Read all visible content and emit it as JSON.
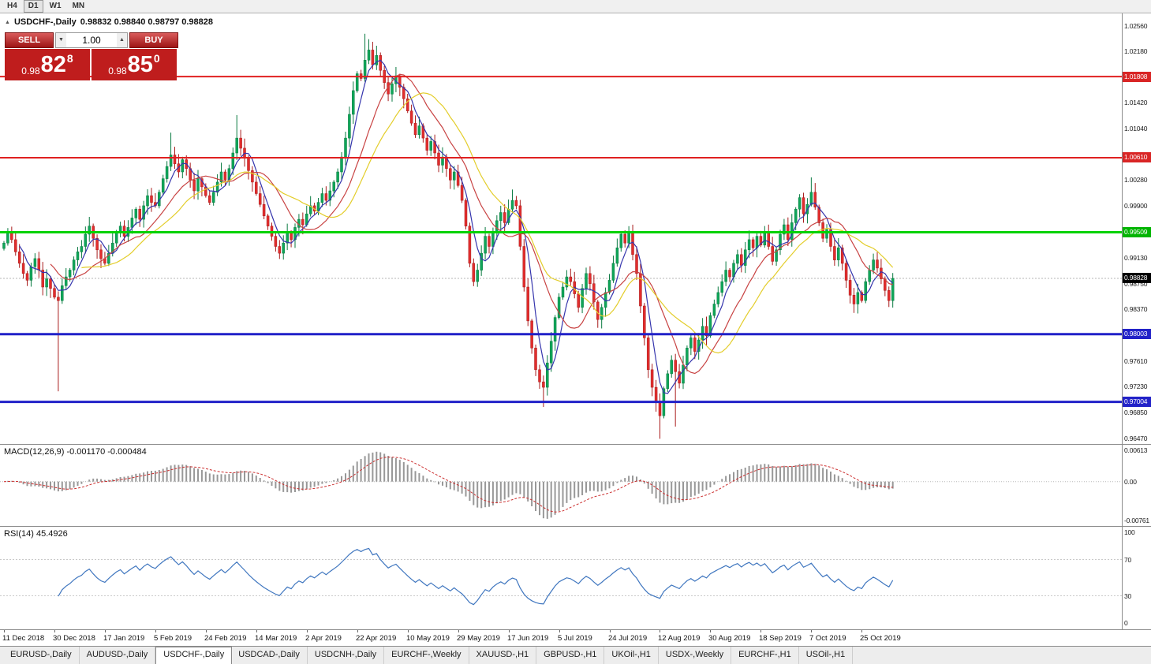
{
  "timeframe_toolbar": {
    "items": [
      "H4",
      "D1",
      "W1",
      "MN"
    ],
    "active": "D1"
  },
  "chart_header": {
    "symbol": "USDCHF-,Daily",
    "ohlc": "0.98832 0.98840 0.98797 0.98828"
  },
  "trade_panel": {
    "sell_label": "SELL",
    "buy_label": "BUY",
    "volume": "1.00",
    "sell_price": {
      "base": "0.98",
      "big": "82",
      "sup": "8"
    },
    "buy_price": {
      "base": "0.98",
      "big": "85",
      "sup": "0"
    }
  },
  "price_axis": {
    "max": 1.0256,
    "min": 0.9647,
    "ticks": [
      "1.02560",
      "1.02180",
      "1.01420",
      "1.01040",
      "1.00280",
      "0.99900",
      "0.99130",
      "0.98750",
      "0.98370",
      "0.97610",
      "0.97230",
      "0.96850",
      "0.96470"
    ],
    "badges": [
      {
        "value": "1.01808",
        "price": 1.01808,
        "color": "#d92525",
        "type": "resistance-line"
      },
      {
        "value": "1.00610",
        "price": 1.0061,
        "color": "#d92525",
        "type": "resistance-line"
      },
      {
        "value": "0.99509",
        "price": 0.99509,
        "color": "#00b400",
        "type": "level-line"
      },
      {
        "value": "0.98828",
        "price": 0.98828,
        "color": "#000000",
        "type": "current-price"
      },
      {
        "value": "0.98003",
        "price": 0.98003,
        "color": "#2222c8",
        "type": "support-line"
      },
      {
        "value": "0.97004",
        "price": 0.97004,
        "color": "#2222c8",
        "type": "support-line"
      }
    ]
  },
  "macd_panel": {
    "label": "MACD(12,26,9) -0.001170 -0.000484",
    "fast": 12,
    "slow": 26,
    "signal": 9,
    "max": 0.00613,
    "min": -0.00761,
    "axis_labels": [
      {
        "text": "0.00613",
        "value": 0.00613
      },
      {
        "text": "0.00",
        "value": 0
      },
      {
        "text": "-0.00761",
        "value": -0.00761
      }
    ]
  },
  "rsi_panel": {
    "label": "RSI(14) 45.4926",
    "period": 14,
    "levels": [
      70,
      30
    ],
    "axis_labels": [
      {
        "text": "100",
        "value": 100
      },
      {
        "text": "70",
        "value": 70
      },
      {
        "text": "30",
        "value": 30
      },
      {
        "text": "0",
        "value": 0
      }
    ]
  },
  "bottom_tabs": {
    "active": "USDCHF-,Daily",
    "tabs": [
      "EURUSD-,Daily",
      "AUDUSD-,Daily",
      "USDCHF-,Daily",
      "USDCAD-,Daily",
      "USDCNH-,Daily",
      "EURCHF-,Weekly",
      "XAUUSD-,H1",
      "GBPUSD-,H1",
      "UKOil-,H1",
      "USDX-,Weekly",
      "EURCHF-,H1",
      "USOil-,H1"
    ]
  },
  "chart_data": {
    "type": "candlestick",
    "title": "USDCHF-,Daily",
    "current_price": 0.98828,
    "hlines": [
      {
        "price": 1.01808,
        "color": "#e02020",
        "width": 2
      },
      {
        "price": 1.0061,
        "color": "#e02020",
        "width": 2
      },
      {
        "price": 0.99509,
        "color": "#00d200",
        "width": 3
      },
      {
        "price": 0.98003,
        "color": "#2121c8",
        "width": 3
      },
      {
        "price": 0.97004,
        "color": "#2121c8",
        "width": 3
      }
    ],
    "moving_averages": [
      {
        "period": 5,
        "color": "#3535ad"
      },
      {
        "period": 13,
        "color": "#c84343"
      },
      {
        "period": 21,
        "color": "#e3cd2a"
      }
    ],
    "date_labels": [
      {
        "i": 0,
        "t": "11 Dec 2018"
      },
      {
        "i": 13,
        "t": "30 Dec 2018"
      },
      {
        "i": 26,
        "t": "17 Jan 2019"
      },
      {
        "i": 39,
        "t": "5 Feb 2019"
      },
      {
        "i": 52,
        "t": "24 Feb 2019"
      },
      {
        "i": 65,
        "t": "14 Mar 2019"
      },
      {
        "i": 78,
        "t": "2 Apr 2019"
      },
      {
        "i": 91,
        "t": "22 Apr 2019"
      },
      {
        "i": 104,
        "t": "10 May 2019"
      },
      {
        "i": 117,
        "t": "29 May 2019"
      },
      {
        "i": 130,
        "t": "17 Jun 2019"
      },
      {
        "i": 143,
        "t": "5 Jul 2019"
      },
      {
        "i": 156,
        "t": "24 Jul 2019"
      },
      {
        "i": 169,
        "t": "12 Aug 2019"
      },
      {
        "i": 182,
        "t": "30 Aug 2019"
      },
      {
        "i": 195,
        "t": "18 Sep 2019"
      },
      {
        "i": 208,
        "t": "7 Oct 2019"
      },
      {
        "i": 221,
        "t": "25 Oct 2019"
      }
    ],
    "closes": [
      0.9935,
      0.9952,
      0.994,
      0.9922,
      0.9905,
      0.989,
      0.988,
      0.99,
      0.9912,
      0.9895,
      0.987,
      0.9882,
      0.9868,
      0.9855,
      0.985,
      0.9872,
      0.9885,
      0.9895,
      0.991,
      0.9922,
      0.993,
      0.9948,
      0.996,
      0.9942,
      0.9925,
      0.9912,
      0.9905,
      0.992,
      0.9935,
      0.995,
      0.996,
      0.9945,
      0.9958,
      0.9972,
      0.9985,
      0.997,
      0.999,
      1.0005,
      0.9995,
      0.999,
      1.001,
      1.003,
      1.0048,
      1.0065,
      1.0052,
      1.004,
      1.0058,
      1.0045,
      1.0028,
      1.0012,
      1.003,
      1.0018,
      1.0005,
      0.9995,
      1.001,
      1.0025,
      1.004,
      1.0028,
      1.0045,
      1.0068,
      1.009,
      1.0075,
      1.006,
      1.0042,
      1.0025,
      1.0008,
      0.9992,
      0.9975,
      0.996,
      0.9945,
      0.993,
      0.992,
      0.9935,
      0.995,
      0.994,
      0.9958,
      0.997,
      0.9962,
      0.9978,
      0.999,
      0.9982,
      0.9995,
      1.0008,
      0.9998,
      1.0012,
      1.0025,
      1.004,
      1.0062,
      1.009,
      1.0125,
      1.016,
      1.0185,
      1.0178,
      1.0205,
      1.022,
      1.0198,
      1.0212,
      1.019,
      1.0172,
      1.0155,
      1.017,
      1.0182,
      1.0165,
      1.0148,
      1.013,
      1.0112,
      1.0095,
      1.0108,
      1.009,
      1.0072,
      1.0085,
      1.0068,
      1.005,
      1.0062,
      1.0045,
      1.0028,
      1.004,
      1.002,
      0.9998,
      0.996,
      0.9905,
      0.9878,
      0.9895,
      0.992,
      0.9945,
      0.993,
      0.9952,
      0.9968,
      0.998,
      0.9965,
      0.9985,
      0.9998,
      0.999,
      0.993,
      0.987,
      0.982,
      0.978,
      0.9748,
      0.973,
      0.9722,
      0.9758,
      0.979,
      0.9825,
      0.9855,
      0.987,
      0.9885,
      0.9878,
      0.986,
      0.984,
      0.9868,
      0.989,
      0.9875,
      0.9848,
      0.9822,
      0.984,
      0.9862,
      0.988,
      0.9905,
      0.9928,
      0.9948,
      0.9935,
      0.9952,
      0.9918,
      0.989,
      0.9842,
      0.9795,
      0.9748,
      0.9722,
      0.97,
      0.968,
      0.972,
      0.9742,
      0.9762,
      0.9745,
      0.9728,
      0.9755,
      0.978,
      0.9795,
      0.9775,
      0.9792,
      0.9812,
      0.9798,
      0.9828,
      0.9845,
      0.9862,
      0.9878,
      0.9895,
      0.9885,
      0.9905,
      0.9918,
      0.9902,
      0.9925,
      0.994,
      0.9928,
      0.9945,
      0.9932,
      0.995,
      0.993,
      0.9908,
      0.9925,
      0.9948,
      0.9962,
      0.994,
      0.9965,
      0.9985,
      1.0002,
      0.9978,
      0.9992,
      1.001,
      0.9988,
      0.9965,
      0.9942,
      0.9955,
      0.993,
      0.991,
      0.9928,
      0.9905,
      0.988,
      0.9858,
      0.9845,
      0.9862,
      0.985,
      0.9878,
      0.9895,
      0.991,
      0.9898,
      0.9882,
      0.9865,
      0.985,
      0.98828
    ],
    "extremes": [
      {
        "i": 14,
        "low": 0.9716
      },
      {
        "i": 43,
        "high": 1.0098
      },
      {
        "i": 60,
        "high": 1.0124
      },
      {
        "i": 93,
        "high": 1.0244
      },
      {
        "i": 94,
        "high": 1.0236
      },
      {
        "i": 131,
        "high": 1.0014
      },
      {
        "i": 139,
        "low": 0.9693
      },
      {
        "i": 169,
        "low": 0.9646
      },
      {
        "i": 173,
        "low": 0.9664
      },
      {
        "i": 208,
        "high": 1.0032
      }
    ]
  }
}
